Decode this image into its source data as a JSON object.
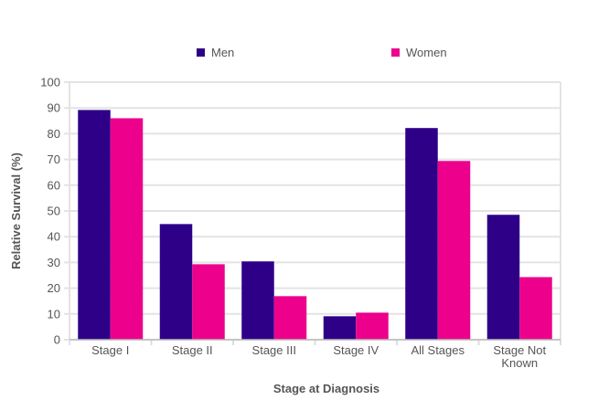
{
  "chart_data": {
    "type": "bar",
    "title": "",
    "xlabel": "Stage at Diagnosis",
    "ylabel": "Relative Survival (%)",
    "ylim": [
      0,
      100
    ],
    "yticks": [
      "0",
      "10",
      "20",
      "30",
      "40",
      "50",
      "60",
      "70",
      "80",
      "90",
      "100"
    ],
    "grid": true,
    "legend_position": "top-center",
    "categories": [
      [
        "Stage I"
      ],
      [
        "Stage II"
      ],
      [
        "Stage III"
      ],
      [
        "Stage IV"
      ],
      [
        "All Stages"
      ],
      [
        "Stage Not",
        "Known"
      ]
    ],
    "series": [
      {
        "name": "Men",
        "color": "#2e0088",
        "values": [
          89.2,
          44.9,
          30.4,
          9.1,
          82.2,
          48.5
        ]
      },
      {
        "name": "Women",
        "color": "#ec008c",
        "values": [
          86.0,
          29.3,
          16.9,
          10.5,
          69.4,
          24.3
        ]
      }
    ]
  }
}
